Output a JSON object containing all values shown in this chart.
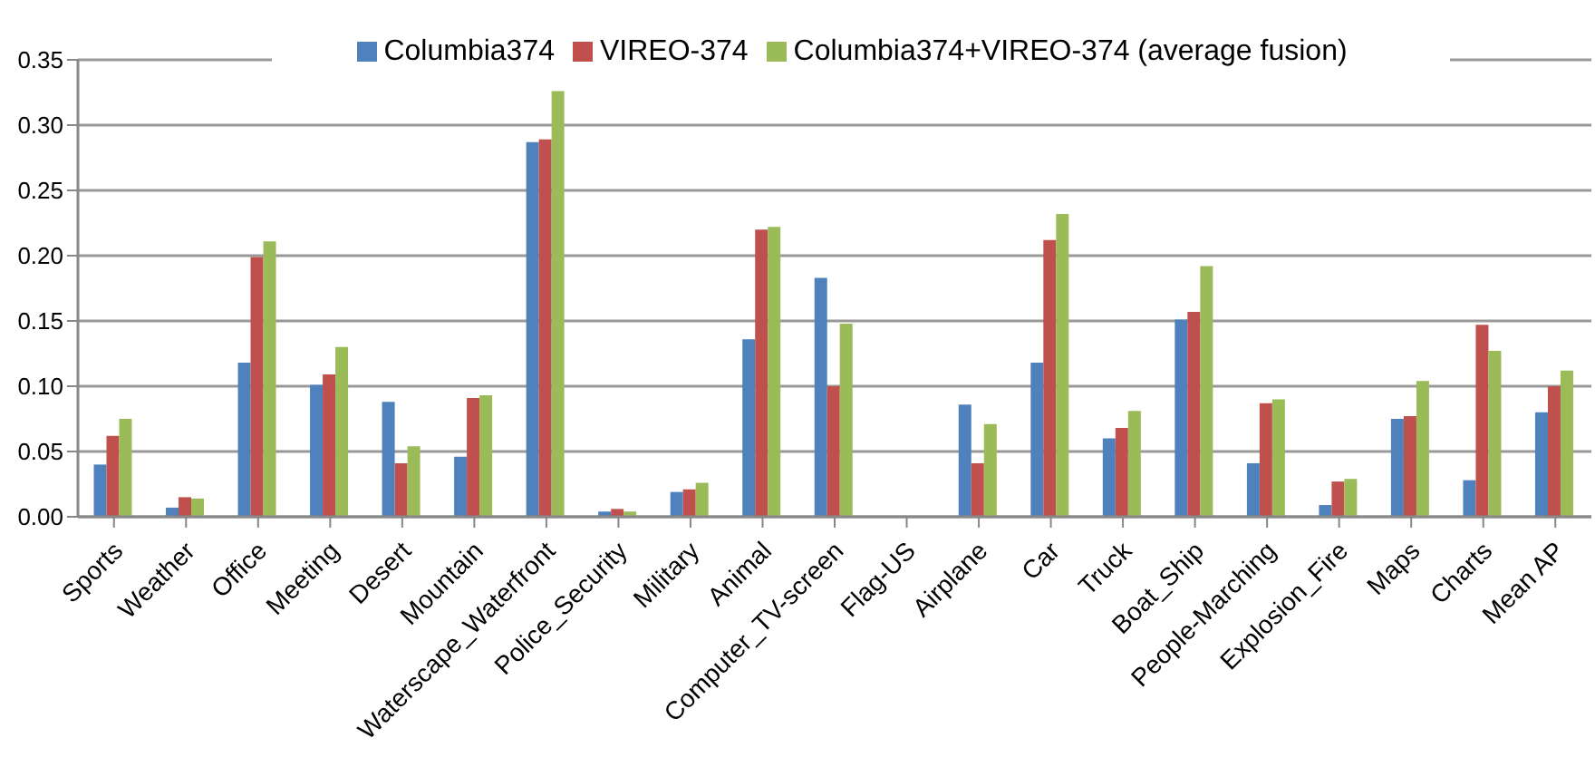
{
  "chart_data": {
    "type": "bar",
    "categories": [
      "Sports",
      "Weather",
      "Office",
      "Meeting",
      "Desert",
      "Mountain",
      "Waterscape_Waterfront",
      "Police_Security",
      "Military",
      "Animal",
      "Computer_TV-screen",
      "Flag-US",
      "Airplane",
      "Car",
      "Truck",
      "Boat_Ship",
      "People-Marching",
      "Explosion_Fire",
      "Maps",
      "Charts",
      "Mean AP"
    ],
    "series": [
      {
        "name": "Columbia374",
        "color": "#4f81bd",
        "values": [
          0.04,
          0.007,
          0.118,
          0.101,
          0.088,
          0.046,
          0.287,
          0.004,
          0.019,
          0.136,
          0.183,
          0,
          0.086,
          0.118,
          0.06,
          0.151,
          0.041,
          0.009,
          0.075,
          0.028,
          0.08
        ]
      },
      {
        "name": "VIREO-374",
        "color": "#c0504d",
        "values": [
          0.062,
          0.015,
          0.199,
          0.109,
          0.041,
          0.091,
          0.289,
          0.006,
          0.021,
          0.22,
          0.1,
          0,
          0.041,
          0.212,
          0.068,
          0.157,
          0.087,
          0.027,
          0.077,
          0.147,
          0.1
        ]
      },
      {
        "name": "Columbia374+VIREO-374 (average fusion)",
        "color": "#9bbb59",
        "values": [
          0.075,
          0.014,
          0.211,
          0.13,
          0.054,
          0.093,
          0.326,
          0.004,
          0.026,
          0.222,
          0.148,
          0,
          0.071,
          0.232,
          0.081,
          0.192,
          0.09,
          0.029,
          0.104,
          0.127,
          0.112
        ]
      }
    ],
    "ylim": [
      0,
      0.35
    ],
    "yticks": [
      {
        "value": 0,
        "label": "0.00"
      },
      {
        "value": 0.05,
        "label": "0.05"
      },
      {
        "value": 0.1,
        "label": "0.10"
      },
      {
        "value": 0.15,
        "label": "0.15"
      },
      {
        "value": 0.2,
        "label": "0.20"
      },
      {
        "value": 0.25,
        "label": "0.25"
      },
      {
        "value": 0.3,
        "label": "0.30"
      },
      {
        "value": 0.35,
        "label": "0.35"
      }
    ],
    "grid": "y",
    "legend": "top"
  }
}
